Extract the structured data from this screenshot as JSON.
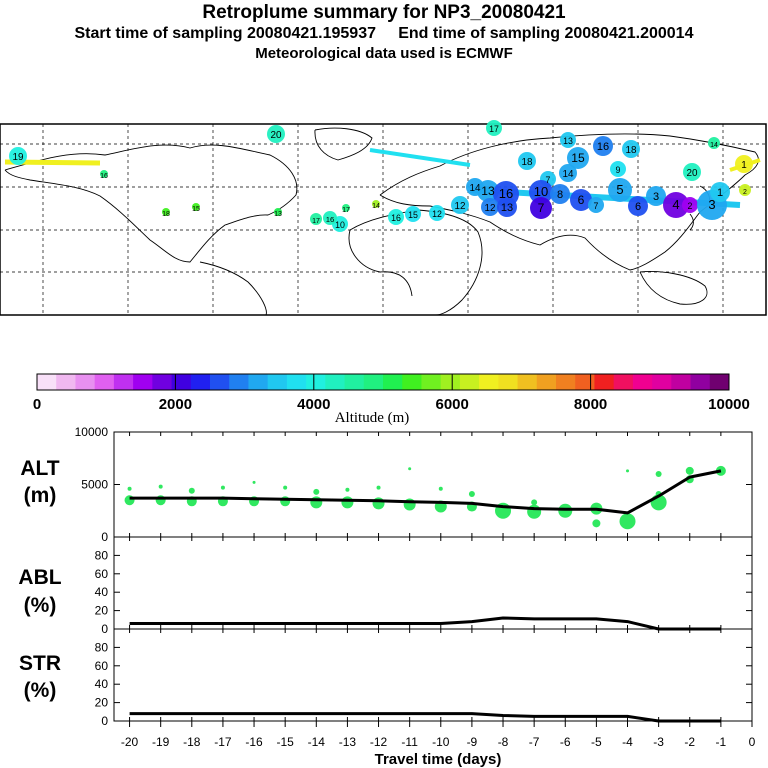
{
  "header": {
    "title": "Retroplume summary for NP3_20080421",
    "line2": "Start time of sampling 20080421.195937     End time of sampling 20080421.200014",
    "line3": "Meteorological data used is ECMWF"
  },
  "colorbar": {
    "title": "Altitude (m)",
    "tick_labels": [
      "0",
      "2000",
      "4000",
      "6000",
      "8000",
      "10000"
    ],
    "colors": [
      "#f8e0f8",
      "#f0b8f0",
      "#e890f0",
      "#e060f0",
      "#c030f0",
      "#a000f0",
      "#7000e0",
      "#4000e0",
      "#2020f0",
      "#2050f0",
      "#2080f0",
      "#20a8f0",
      "#20c8f0",
      "#20e0f0",
      "#20f0e0",
      "#20f0c0",
      "#20f0a0",
      "#20f080",
      "#20f050",
      "#40f020",
      "#70f020",
      "#a0f020",
      "#c8f020",
      "#f0f020",
      "#f0e020",
      "#f0c020",
      "#f0a020",
      "#f08020",
      "#f06020",
      "#f02020",
      "#f01060",
      "#f00090",
      "#e000a0",
      "#c000a0",
      "#9000a0",
      "#700070"
    ]
  },
  "map": {
    "labels": [
      "19",
      "20",
      "17",
      "13",
      "15",
      "16",
      "18",
      "14",
      "12",
      "11",
      "10",
      "9",
      "8",
      "7",
      "6",
      "5",
      "4",
      "3",
      "2",
      "1"
    ]
  },
  "chart_data": [
    {
      "type": "line",
      "panel": "ALT",
      "ylabel": "ALT (m)",
      "ylabel_lines": [
        "ALT",
        "(m)"
      ],
      "ylim": [
        0,
        10000
      ],
      "yticks": [
        "0",
        "5000",
        "10000"
      ],
      "x": [
        -20,
        -19,
        -18,
        -17,
        -16,
        -15,
        -14,
        -13,
        -12,
        -11,
        -10,
        -9,
        -8,
        -7,
        -6,
        -5,
        -4,
        -3,
        -2,
        -1
      ],
      "values": [
        3700,
        3700,
        3700,
        3700,
        3650,
        3600,
        3550,
        3500,
        3450,
        3350,
        3300,
        3200,
        2900,
        2700,
        2650,
        2650,
        2300,
        3900,
        5700,
        6300
      ],
      "points": [
        {
          "x": -20,
          "y": 3500,
          "s": 5
        },
        {
          "x": -20,
          "y": 4600,
          "s": 2
        },
        {
          "x": -19,
          "y": 3500,
          "s": 5
        },
        {
          "x": -19,
          "y": 4800,
          "s": 2
        },
        {
          "x": -18,
          "y": 3400,
          "s": 5
        },
        {
          "x": -18,
          "y": 4400,
          "s": 3
        },
        {
          "x": -17,
          "y": 3400,
          "s": 5
        },
        {
          "x": -17,
          "y": 4700,
          "s": 2
        },
        {
          "x": -16,
          "y": 3400,
          "s": 5
        },
        {
          "x": -16,
          "y": 5200,
          "s": 1.5
        },
        {
          "x": -15,
          "y": 3400,
          "s": 5
        },
        {
          "x": -15,
          "y": 4700,
          "s": 2
        },
        {
          "x": -14,
          "y": 3300,
          "s": 6
        },
        {
          "x": -14,
          "y": 4300,
          "s": 3
        },
        {
          "x": -13,
          "y": 3300,
          "s": 6
        },
        {
          "x": -13,
          "y": 4500,
          "s": 2
        },
        {
          "x": -12,
          "y": 3200,
          "s": 6
        },
        {
          "x": -12,
          "y": 4700,
          "s": 2
        },
        {
          "x": -11,
          "y": 3100,
          "s": 6
        },
        {
          "x": -11,
          "y": 6500,
          "s": 1.5
        },
        {
          "x": -10,
          "y": 2900,
          "s": 6
        },
        {
          "x": -10,
          "y": 4600,
          "s": 2
        },
        {
          "x": -9,
          "y": 2900,
          "s": 5
        },
        {
          "x": -9,
          "y": 4100,
          "s": 3
        },
        {
          "x": -8,
          "y": 2500,
          "s": 8
        },
        {
          "x": -7,
          "y": 2400,
          "s": 7
        },
        {
          "x": -7,
          "y": 3300,
          "s": 3
        },
        {
          "x": -6,
          "y": 2500,
          "s": 7
        },
        {
          "x": -5,
          "y": 2700,
          "s": 6
        },
        {
          "x": -5,
          "y": 1300,
          "s": 4
        },
        {
          "x": -4,
          "y": 1500,
          "s": 8
        },
        {
          "x": -4,
          "y": 6300,
          "s": 1.5
        },
        {
          "x": -3,
          "y": 3300,
          "s": 8
        },
        {
          "x": -3,
          "y": 4100,
          "s": 3
        },
        {
          "x": -3,
          "y": 6000,
          "s": 3
        },
        {
          "x": -2,
          "y": 5500,
          "s": 4
        },
        {
          "x": -2,
          "y": 6300,
          "s": 4
        },
        {
          "x": -1,
          "y": 6300,
          "s": 5
        }
      ]
    },
    {
      "type": "line",
      "panel": "ABL",
      "ylabel": "ABL (%)",
      "ylabel_lines": [
        "ABL",
        "(%)"
      ],
      "ylim": [
        0,
        100
      ],
      "yticks": [
        "0",
        "20",
        "40",
        "60",
        "80"
      ],
      "x": [
        -20,
        -19,
        -18,
        -17,
        -16,
        -15,
        -14,
        -13,
        -12,
        -11,
        -10,
        -9,
        -8,
        -7,
        -6,
        -5,
        -4,
        -3,
        -2,
        -1
      ],
      "values": [
        6,
        6,
        6,
        6,
        6,
        6,
        6,
        6,
        6,
        6,
        6,
        8,
        12,
        11,
        11,
        11,
        8,
        0,
        0,
        0
      ]
    },
    {
      "type": "line",
      "panel": "STR",
      "ylabel": "STR (%)",
      "ylabel_lines": [
        "STR",
        "(%)"
      ],
      "ylim": [
        0,
        100
      ],
      "yticks": [
        "0",
        "20",
        "40",
        "60",
        "80"
      ],
      "x": [
        -20,
        -19,
        -18,
        -17,
        -16,
        -15,
        -14,
        -13,
        -12,
        -11,
        -10,
        -9,
        -8,
        -7,
        -6,
        -5,
        -4,
        -3,
        -2,
        -1
      ],
      "values": [
        8,
        8,
        8,
        8,
        8,
        8,
        8,
        8,
        8,
        8,
        8,
        8,
        6,
        5,
        5,
        5,
        5,
        0,
        0,
        0
      ]
    },
    {
      "type": "axis",
      "xlabel": "Travel time (days)",
      "xticks": [
        "-20",
        "-19",
        "-18",
        "-17",
        "-16",
        "-15",
        "-14",
        "-13",
        "-12",
        "-11",
        "-10",
        "-9",
        "-8",
        "-7",
        "-6",
        "-5",
        "-4",
        "-3",
        "-2",
        "-1",
        "0"
      ]
    }
  ]
}
